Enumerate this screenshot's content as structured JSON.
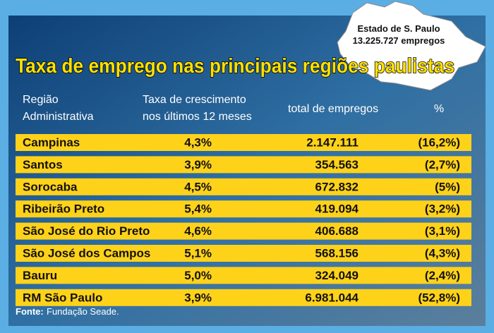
{
  "header": {
    "title": "Taxa de emprego nas principais regiões paulistas"
  },
  "map": {
    "label": [
      "Estado de S. Paulo",
      "13.225.727 empregos"
    ]
  },
  "table": {
    "headers": [
      [
        "Região",
        "Administrativa"
      ],
      [
        "Taxa de crescimento",
        "nos últimos 12 meses"
      ],
      [
        "total de empregos"
      ],
      [
        "%"
      ]
    ],
    "rows": [
      [
        "Campinas",
        "4,3%",
        "2.147.111",
        "(16,2%)"
      ],
      [
        "Santos",
        "3,9%",
        "354.563",
        "(2,7%)"
      ],
      [
        "Sorocaba",
        "4,5%",
        "672.832",
        "(5%)"
      ],
      [
        "Ribeirão Preto",
        "5,4%",
        "419.094",
        "(3,2%)"
      ],
      [
        "São José do Rio Preto",
        "4,6%",
        "406.688",
        "(3,1%)"
      ],
      [
        "São José dos Campos",
        "5,1%",
        "568.156",
        "(4,3%)"
      ],
      [
        "Bauru",
        "5,0%",
        "324.049",
        "(2,4%)"
      ],
      [
        "RM São Paulo",
        "3,9%",
        "6.981.044",
        "(52,8%)"
      ]
    ]
  },
  "source": {
    "label": "Fonte:",
    "text": "Fundação Seade."
  }
}
